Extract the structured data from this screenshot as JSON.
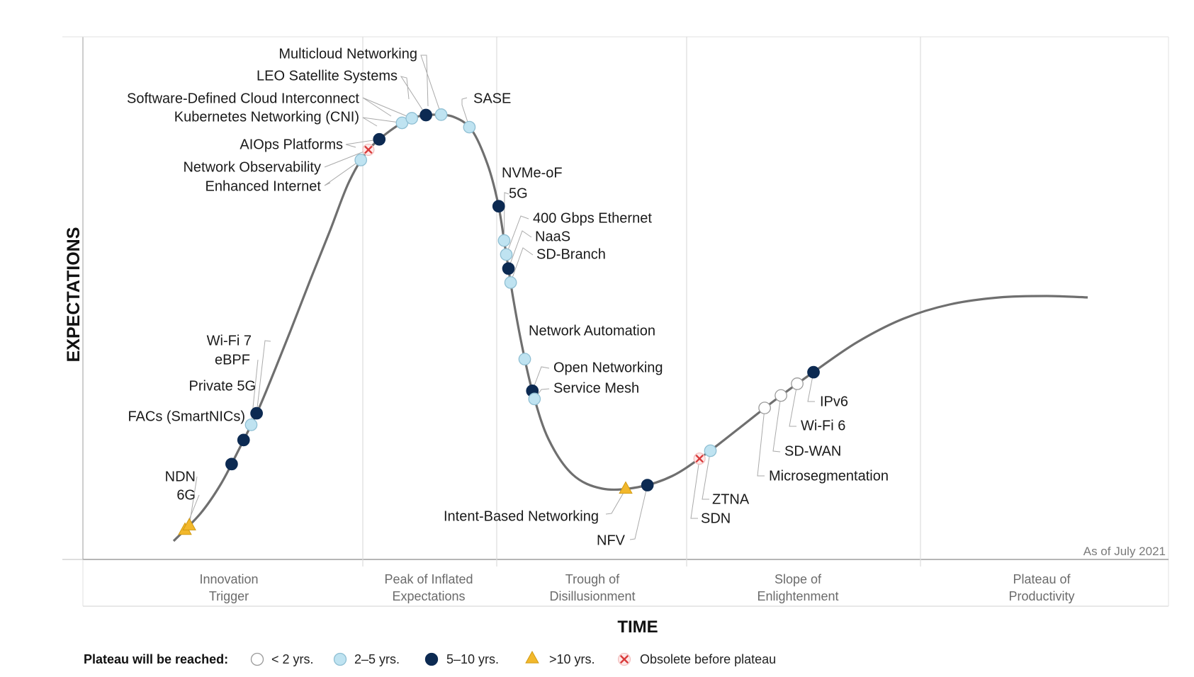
{
  "chart_data": {
    "type": "hype-cycle",
    "xlabel": "TIME",
    "ylabel": "EXPECTATIONS",
    "as_of": "As of July 2021",
    "phases": [
      "Innovation\nTrigger",
      "Peak of Inflated\nExpectations",
      "Trough of\nDisillusionment",
      "Slope of\nEnlightenment",
      "Plateau of\nProductivity"
    ],
    "legend": {
      "title": "Plateau will be reached:",
      "items": [
        {
          "key": "lt2",
          "label": "< 2 yrs."
        },
        {
          "key": "2to5",
          "label": "2–5 yrs."
        },
        {
          "key": "5to10",
          "label": "5–10 yrs."
        },
        {
          "key": "gt10",
          "label": ">10 yrs."
        },
        {
          "key": "obs",
          "label": "Obsolete before plateau"
        }
      ]
    },
    "categories": {
      "lt2": {
        "shape": "circle",
        "fill": "#ffffff",
        "stroke": "#9a9a9a"
      },
      "2to5": {
        "shape": "circle",
        "fill": "#bfe3f1",
        "stroke": "#8fbfd3"
      },
      "5to10": {
        "shape": "circle",
        "fill": "#0c2a52",
        "stroke": "#0c2a52"
      },
      "gt10": {
        "shape": "triangle",
        "fill": "#f2b82c",
        "stroke": "#d29a10"
      },
      "obs": {
        "shape": "cross",
        "fill": "#ffffff",
        "stroke": "#d93a3a"
      }
    },
    "technologies": [
      {
        "name": "6G",
        "category": "gt10",
        "position": 0.094
      },
      {
        "name": "NDN",
        "category": "gt10",
        "position": 0.098
      },
      {
        "name": "FACs (SmartNICs)",
        "category": "5to10",
        "position": 0.137
      },
      {
        "name": "Private 5G",
        "category": "5to10",
        "position": 0.148
      },
      {
        "name": "eBPF",
        "category": "2to5",
        "position": 0.155
      },
      {
        "name": "Wi-Fi 7",
        "category": "5to10",
        "position": 0.16
      },
      {
        "name": "Enhanced Internet",
        "category": "2to5",
        "position": 0.256
      },
      {
        "name": "Network Observability",
        "category": "obs",
        "position": 0.263
      },
      {
        "name": "AIOps Platforms",
        "category": "5to10",
        "position": 0.273
      },
      {
        "name": "Kubernetes Networking (CNI)",
        "category": "2to5",
        "position": 0.294
      },
      {
        "name": "Software-Defined Cloud Interconnect",
        "category": "2to5",
        "position": 0.303
      },
      {
        "name": "LEO Satellite Systems",
        "category": "5to10",
        "position": 0.316
      },
      {
        "name": "Multicloud Networking",
        "category": "2to5",
        "position": 0.33
      },
      {
        "name": "SASE",
        "category": "2to5",
        "position": 0.356
      },
      {
        "name": "NVMe-oF",
        "category": "5to10",
        "position": 0.383
      },
      {
        "name": "5G",
        "category": "2to5",
        "position": 0.388
      },
      {
        "name": "400 Gbps Ethernet",
        "category": "2to5",
        "position": 0.39
      },
      {
        "name": "NaaS",
        "category": "5to10",
        "position": 0.392
      },
      {
        "name": "SD-Branch",
        "category": "2to5",
        "position": 0.394
      },
      {
        "name": "Network Automation",
        "category": "2to5",
        "position": 0.407
      },
      {
        "name": "Open Networking",
        "category": "5to10",
        "position": 0.414
      },
      {
        "name": "Service Mesh",
        "category": "2to5",
        "position": 0.416
      },
      {
        "name": "Intent-Based Networking",
        "category": "gt10",
        "position": 0.5
      },
      {
        "name": "NFV",
        "category": "5to10",
        "position": 0.52
      },
      {
        "name": "SDN",
        "category": "obs",
        "position": 0.568
      },
      {
        "name": "ZTNA",
        "category": "2to5",
        "position": 0.578
      },
      {
        "name": "Microsegmentation",
        "category": "lt2",
        "position": 0.628
      },
      {
        "name": "SD-WAN",
        "category": "lt2",
        "position": 0.643
      },
      {
        "name": "Wi-Fi 6",
        "category": "lt2",
        "position": 0.658
      },
      {
        "name": "IPv6",
        "category": "5to10",
        "position": 0.673
      }
    ]
  }
}
